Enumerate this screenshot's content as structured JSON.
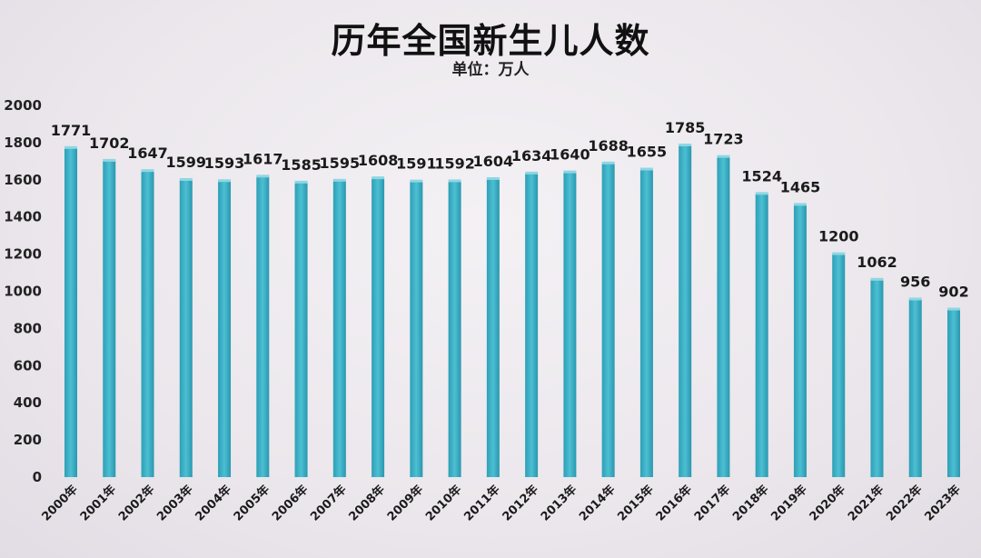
{
  "chart_data": {
    "type": "bar",
    "title": "历年全国新生儿人数",
    "subtitle": "单位：万人",
    "categories": [
      "2000年",
      "2001年",
      "2002年",
      "2003年",
      "2004年",
      "2005年",
      "2006年",
      "2007年",
      "2008年",
      "2009年",
      "2010年",
      "2011年",
      "2012年",
      "2013年",
      "2014年",
      "2015年",
      "2016年",
      "2017年",
      "2018年",
      "2019年",
      "2020年",
      "2021年",
      "2022年",
      "2023年"
    ],
    "values": [
      1771,
      1702,
      1647,
      1599,
      1593,
      1617,
      1585,
      1595,
      1608,
      1591,
      1592,
      1604,
      1634,
      1640,
      1688,
      1655,
      1785,
      1723,
      1524,
      1465,
      1200,
      1062,
      956,
      902
    ],
    "ylim": [
      0,
      2000
    ],
    "yticks": [
      0,
      200,
      400,
      600,
      800,
      1000,
      1200,
      1400,
      1600,
      1800,
      2000
    ],
    "xlabel": "",
    "ylabel": "",
    "grid": false,
    "bar_color": "#3fb3c9"
  }
}
